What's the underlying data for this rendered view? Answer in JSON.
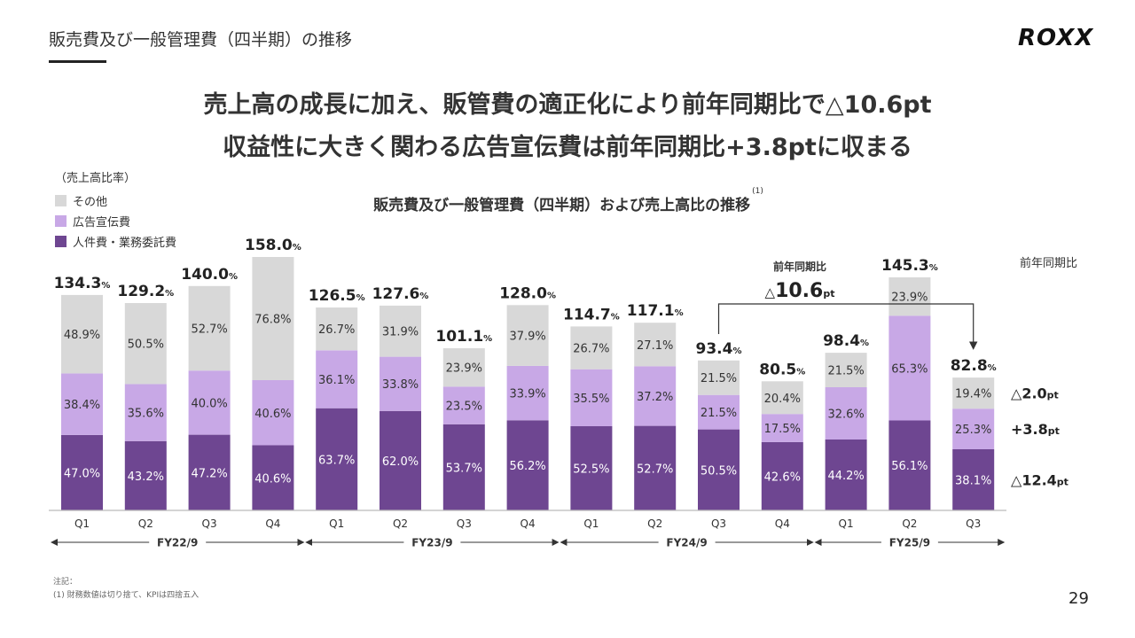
{
  "header": {
    "section_title": "販売費及び一般管理費（四半期）の推移",
    "logo": "ROXX"
  },
  "headline": {
    "line1": "売上高の成長に加え、販管費の適正化により前年同期比で△10.6pt",
    "line2": "収益性に大きく関わる広告宣伝費は前年同期比+3.8ptに収まる"
  },
  "legend": {
    "title": "（売上高比率）",
    "items": [
      {
        "label": "その他",
        "color": "#d8d8d8"
      },
      {
        "label": "広告宣伝費",
        "color": "#c8a8e6"
      },
      {
        "label": "人件費・業務委託費",
        "color": "#6e4691"
      }
    ]
  },
  "chart_title": "販売費及び一般管理費（四半期）および売上高比の推移",
  "chart_title_note": "(1)",
  "yoy_header": "前年同期比",
  "yoy_callout": {
    "label": "前年同期比",
    "value_prefix": "△",
    "value": "10.6",
    "unit": "pt"
  },
  "yoy_changes": [
    {
      "prefix": "△",
      "value": "2.0",
      "unit": "pt"
    },
    {
      "prefix": "+",
      "value": "3.8",
      "unit": "pt"
    },
    {
      "prefix": "△",
      "value": "12.4",
      "unit": "pt"
    }
  ],
  "colors": {
    "personnel": "#6e4691",
    "advertising": "#c8a8e6",
    "other": "#d8d8d8"
  },
  "chart_data": {
    "type": "bar",
    "stacked": true,
    "categories": [
      "Q1",
      "Q2",
      "Q3",
      "Q4",
      "Q1",
      "Q2",
      "Q3",
      "Q4",
      "Q1",
      "Q2",
      "Q3",
      "Q4",
      "Q1",
      "Q2",
      "Q3"
    ],
    "fiscal_years": [
      {
        "label": "FY22/9",
        "quarters": 4
      },
      {
        "label": "FY23/9",
        "quarters": 4
      },
      {
        "label": "FY24/9",
        "quarters": 4
      },
      {
        "label": "FY25/9",
        "quarters": 3
      }
    ],
    "series": [
      {
        "name": "人件費・業務委託費",
        "values": [
          47.0,
          43.2,
          47.2,
          40.6,
          63.7,
          62.0,
          53.7,
          56.2,
          52.5,
          52.7,
          50.5,
          42.6,
          44.2,
          56.1,
          38.1
        ]
      },
      {
        "name": "広告宣伝費",
        "values": [
          38.4,
          35.6,
          40.0,
          40.6,
          36.1,
          33.8,
          23.5,
          33.9,
          35.5,
          37.2,
          21.5,
          17.5,
          32.6,
          65.3,
          25.3
        ]
      },
      {
        "name": "その他",
        "values": [
          48.9,
          50.5,
          52.7,
          76.8,
          26.7,
          31.9,
          23.9,
          37.9,
          26.7,
          27.1,
          21.5,
          20.4,
          21.5,
          23.9,
          19.4
        ]
      }
    ],
    "totals": [
      134.3,
      129.2,
      140.0,
      158.0,
      126.5,
      127.6,
      101.1,
      128.0,
      114.7,
      117.1,
      93.4,
      80.5,
      98.4,
      145.3,
      82.8
    ],
    "segment_labels": {
      "personnel": [
        "47.0%",
        "43.2%",
        "47.2%",
        "40.6%",
        "63.7%",
        "62.0%",
        "53.7%",
        "56.2%",
        "52.5%",
        "52.7%",
        "50.5%",
        "42.6%",
        "44.2%",
        "56.1%",
        "38.1%"
      ],
      "advertising": [
        "38.4%",
        "35.6%",
        "40.0%",
        "40.6%",
        "36.1%",
        "33.8%",
        "23.5%",
        "33.9%",
        "35.5%",
        "37.2%",
        "21.5%",
        "17.5%",
        "32.6%",
        "65.3%",
        "25.3%"
      ],
      "other": [
        "48.9%",
        "50.5%",
        "52.7%",
        "76.8%",
        "26.7%",
        "31.9%",
        "23.9%",
        "37.9%",
        "26.7%",
        "27.1%",
        "21.5%",
        "20.4%",
        "21.5%",
        "23.9%",
        "19.4%"
      ]
    },
    "total_labels": [
      "134.3",
      "129.2",
      "140.0",
      "158.0",
      "126.5",
      "127.6",
      "101.1",
      "128.0",
      "114.7",
      "117.1",
      "93.4",
      "80.5",
      "98.4",
      "145.3",
      "82.8"
    ],
    "total_unit": "%",
    "ylim": [
      0,
      160
    ]
  },
  "footnote": {
    "label": "注記：",
    "note1": "(1) 財務数値は切り捨て、KPIは四捨五入"
  },
  "page_number": "29"
}
